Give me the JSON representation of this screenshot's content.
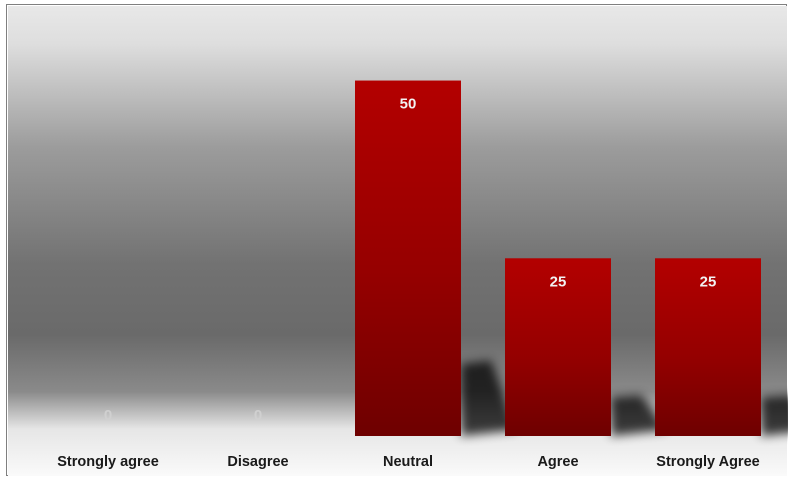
{
  "chart_data": {
    "type": "bar",
    "categories": [
      "Strongly agree",
      "Disagree",
      "Neutral",
      "Agree",
      "Strongly Agree"
    ],
    "values": [
      0,
      0,
      50,
      25,
      25
    ],
    "title": "",
    "xlabel": "",
    "ylabel": "",
    "ylim": [
      0,
      55
    ],
    "data_labels": [
      "0",
      "0",
      "50",
      "25",
      "25"
    ],
    "grid": false,
    "legend": "none",
    "colors": {
      "bar_top": "#b30000",
      "bar_bottom": "#6e0000",
      "label_on_bar": "#f2f2f2",
      "label_zero": "#d0d0d0",
      "background_light": "#e6e6e6",
      "background_dark": "#666666"
    }
  }
}
